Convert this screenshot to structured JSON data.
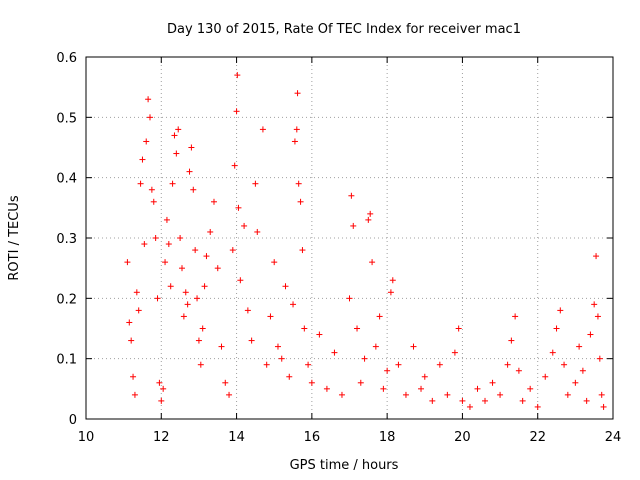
{
  "chart_data": {
    "type": "scatter",
    "title": "Day 130 of 2015, Rate Of TEC Index for receiver mac1",
    "xlabel": "GPS time / hours",
    "ylabel": "ROTI / TECUs",
    "xlim": [
      10,
      24
    ],
    "ylim": [
      0,
      0.6
    ],
    "xticks": [
      10,
      12,
      14,
      16,
      18,
      20,
      22,
      24
    ],
    "yticks": [
      0,
      0.1,
      0.2,
      0.3,
      0.4,
      0.5,
      0.6
    ],
    "xtick_labels": [
      "10",
      "12",
      "14",
      "16",
      "18",
      "20",
      "22",
      "24"
    ],
    "ytick_labels": [
      "0",
      "0.1",
      "0.2",
      "0.3",
      "0.4",
      "0.5",
      "0.6"
    ],
    "grid": true,
    "marker": "+",
    "color": "#ff0000",
    "series": [
      {
        "name": "mac1",
        "points": [
          [
            11.1,
            0.26
          ],
          [
            11.15,
            0.16
          ],
          [
            11.2,
            0.13
          ],
          [
            11.25,
            0.07
          ],
          [
            11.3,
            0.04
          ],
          [
            11.35,
            0.21
          ],
          [
            11.4,
            0.18
          ],
          [
            11.45,
            0.39
          ],
          [
            11.5,
            0.43
          ],
          [
            11.55,
            0.29
          ],
          [
            11.6,
            0.46
          ],
          [
            11.65,
            0.53
          ],
          [
            11.7,
            0.5
          ],
          [
            11.75,
            0.38
          ],
          [
            11.8,
            0.36
          ],
          [
            11.85,
            0.3
          ],
          [
            11.9,
            0.2
          ],
          [
            11.95,
            0.06
          ],
          [
            12.0,
            0.03
          ],
          [
            12.05,
            0.05
          ],
          [
            12.1,
            0.26
          ],
          [
            12.15,
            0.33
          ],
          [
            12.2,
            0.29
          ],
          [
            12.25,
            0.22
          ],
          [
            12.3,
            0.39
          ],
          [
            12.35,
            0.47
          ],
          [
            12.4,
            0.44
          ],
          [
            12.45,
            0.48
          ],
          [
            12.5,
            0.3
          ],
          [
            12.55,
            0.25
          ],
          [
            12.6,
            0.17
          ],
          [
            12.65,
            0.21
          ],
          [
            12.7,
            0.19
          ],
          [
            12.75,
            0.41
          ],
          [
            12.8,
            0.45
          ],
          [
            12.85,
            0.38
          ],
          [
            12.9,
            0.28
          ],
          [
            12.95,
            0.2
          ],
          [
            13.0,
            0.13
          ],
          [
            13.05,
            0.09
          ],
          [
            13.1,
            0.15
          ],
          [
            13.15,
            0.22
          ],
          [
            13.2,
            0.27
          ],
          [
            13.3,
            0.31
          ],
          [
            13.4,
            0.36
          ],
          [
            13.5,
            0.25
          ],
          [
            13.6,
            0.12
          ],
          [
            13.7,
            0.06
          ],
          [
            13.8,
            0.04
          ],
          [
            13.9,
            0.28
          ],
          [
            13.95,
            0.42
          ],
          [
            14.0,
            0.51
          ],
          [
            14.02,
            0.57
          ],
          [
            14.05,
            0.35
          ],
          [
            14.1,
            0.23
          ],
          [
            14.2,
            0.32
          ],
          [
            14.3,
            0.18
          ],
          [
            14.4,
            0.13
          ],
          [
            14.5,
            0.39
          ],
          [
            14.55,
            0.31
          ],
          [
            14.7,
            0.48
          ],
          [
            14.8,
            0.09
          ],
          [
            14.9,
            0.17
          ],
          [
            15.0,
            0.26
          ],
          [
            15.1,
            0.12
          ],
          [
            15.2,
            0.1
          ],
          [
            15.3,
            0.22
          ],
          [
            15.4,
            0.07
          ],
          [
            15.5,
            0.19
          ],
          [
            15.55,
            0.46
          ],
          [
            15.6,
            0.48
          ],
          [
            15.62,
            0.54
          ],
          [
            15.65,
            0.39
          ],
          [
            15.7,
            0.36
          ],
          [
            15.75,
            0.28
          ],
          [
            15.8,
            0.15
          ],
          [
            15.9,
            0.09
          ],
          [
            16.0,
            0.06
          ],
          [
            16.2,
            0.14
          ],
          [
            16.4,
            0.05
          ],
          [
            16.6,
            0.11
          ],
          [
            16.8,
            0.04
          ],
          [
            17.0,
            0.2
          ],
          [
            17.05,
            0.37
          ],
          [
            17.1,
            0.32
          ],
          [
            17.2,
            0.15
          ],
          [
            17.3,
            0.06
          ],
          [
            17.4,
            0.1
          ],
          [
            17.5,
            0.33
          ],
          [
            17.55,
            0.34
          ],
          [
            17.6,
            0.26
          ],
          [
            17.7,
            0.12
          ],
          [
            17.8,
            0.17
          ],
          [
            17.9,
            0.05
          ],
          [
            18.0,
            0.08
          ],
          [
            18.1,
            0.21
          ],
          [
            18.15,
            0.23
          ],
          [
            18.3,
            0.09
          ],
          [
            18.5,
            0.04
          ],
          [
            18.7,
            0.12
          ],
          [
            18.9,
            0.05
          ],
          [
            19.0,
            0.07
          ],
          [
            19.2,
            0.03
          ],
          [
            19.4,
            0.09
          ],
          [
            19.6,
            0.04
          ],
          [
            19.8,
            0.11
          ],
          [
            19.9,
            0.15
          ],
          [
            20.0,
            0.03
          ],
          [
            20.2,
            0.02
          ],
          [
            20.4,
            0.05
          ],
          [
            20.6,
            0.03
          ],
          [
            20.8,
            0.06
          ],
          [
            21.0,
            0.04
          ],
          [
            21.2,
            0.09
          ],
          [
            21.3,
            0.13
          ],
          [
            21.4,
            0.17
          ],
          [
            21.5,
            0.08
          ],
          [
            21.6,
            0.03
          ],
          [
            21.8,
            0.05
          ],
          [
            22.0,
            0.02
          ],
          [
            22.2,
            0.07
          ],
          [
            22.4,
            0.11
          ],
          [
            22.5,
            0.15
          ],
          [
            22.6,
            0.18
          ],
          [
            22.7,
            0.09
          ],
          [
            22.8,
            0.04
          ],
          [
            23.0,
            0.06
          ],
          [
            23.1,
            0.12
          ],
          [
            23.2,
            0.08
          ],
          [
            23.3,
            0.03
          ],
          [
            23.4,
            0.14
          ],
          [
            23.5,
            0.19
          ],
          [
            23.55,
            0.27
          ],
          [
            23.6,
            0.17
          ],
          [
            23.65,
            0.1
          ],
          [
            23.7,
            0.04
          ],
          [
            23.75,
            0.02
          ]
        ]
      }
    ]
  }
}
